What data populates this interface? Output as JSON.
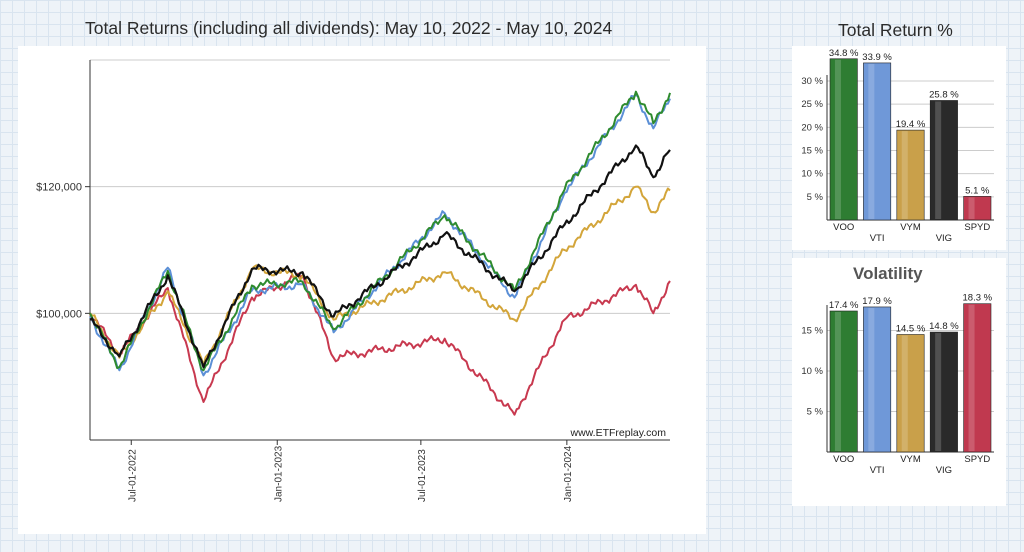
{
  "main_title": "Total Returns (including all dividends): May 10, 2022 - May 10, 2024",
  "return_title": "Total Return %",
  "volatility_title": "Volatility",
  "watermark": "www.ETFreplay.com",
  "chart_data": [
    {
      "type": "line",
      "title": "Total Returns (including all dividends): May 10, 2022 - May 10, 2024",
      "x_ticks": [
        "Jul-01-2022",
        "Jan-01-2023",
        "Jul-01-2023",
        "Jan-01-2024"
      ],
      "x_tick_dates": [
        "2022-07-01",
        "2023-01-01",
        "2023-07-01",
        "2024-01-01"
      ],
      "x_range": [
        "2022-05-10",
        "2024-05-10"
      ],
      "y_ticks": [
        "$100,000",
        "$120,000"
      ],
      "y_tick_values": [
        100000,
        120000
      ],
      "ylim": [
        80000,
        140000
      ],
      "grid": "horizontal",
      "series": [
        {
          "key": "VOO",
          "color": "#2e8b2e",
          "x": [
            "2022-05-10",
            "2022-06-16",
            "2022-08-16",
            "2022-09-30",
            "2022-11-30",
            "2023-02-02",
            "2023-03-13",
            "2023-07-31",
            "2023-10-27",
            "2023-12-29",
            "2024-03-28",
            "2024-04-19",
            "2024-05-10"
          ],
          "y": [
            100000,
            91500,
            106700,
            91000,
            104400,
            105000,
            97500,
            115500,
            103500,
            119500,
            135000,
            130000,
            134800
          ]
        },
        {
          "key": "VTI",
          "color": "#5b8fd6",
          "x": [
            "2022-05-10",
            "2022-06-16",
            "2022-08-16",
            "2022-09-30",
            "2022-11-30",
            "2023-02-02",
            "2023-03-13",
            "2023-07-31",
            "2023-10-27",
            "2023-12-29",
            "2024-03-28",
            "2024-04-19",
            "2024-05-10"
          ],
          "y": [
            99500,
            91000,
            107200,
            90200,
            103600,
            104600,
            97000,
            115800,
            102500,
            119000,
            134500,
            129200,
            133900
          ]
        },
        {
          "key": "VYM",
          "color": "#d3a53a",
          "x": [
            "2022-05-10",
            "2022-06-16",
            "2022-08-16",
            "2022-09-30",
            "2022-11-30",
            "2023-02-02",
            "2023-03-13",
            "2023-07-31",
            "2023-10-27",
            "2023-12-29",
            "2024-03-28",
            "2024-04-19",
            "2024-05-10"
          ],
          "y": [
            100000,
            93000,
            103500,
            91800,
            107000,
            106000,
            99000,
            106500,
            99000,
            110000,
            120000,
            116000,
            119400
          ]
        },
        {
          "key": "VIG",
          "color": "#111111",
          "x": [
            "2022-05-10",
            "2022-06-16",
            "2022-08-16",
            "2022-09-30",
            "2022-11-30",
            "2023-02-02",
            "2023-03-13",
            "2023-07-31",
            "2023-10-27",
            "2023-12-29",
            "2024-03-28",
            "2024-04-19",
            "2024-05-10"
          ],
          "y": [
            99000,
            93200,
            106000,
            91500,
            107000,
            106500,
            99500,
            112500,
            103500,
            114000,
            126500,
            121500,
            125800
          ]
        },
        {
          "key": "SPYD",
          "color": "#c8394f",
          "x": [
            "2022-05-10",
            "2022-06-16",
            "2022-08-16",
            "2022-09-30",
            "2022-11-30",
            "2023-02-02",
            "2023-03-13",
            "2023-07-31",
            "2023-10-27",
            "2023-12-29",
            "2024-03-28",
            "2024-04-19",
            "2024-05-10"
          ],
          "y": [
            100000,
            93500,
            104000,
            86000,
            102500,
            106000,
            93000,
            96000,
            84000,
            99000,
            104500,
            100000,
            105100
          ]
        }
      ]
    },
    {
      "type": "bar",
      "title": "Total Return %",
      "categories": [
        "VOO",
        "VTI",
        "VYM",
        "VIG",
        "SPYD"
      ],
      "values": [
        34.8,
        33.9,
        19.4,
        25.8,
        5.1
      ],
      "value_labels": [
        "34.8 %",
        "33.9 %",
        "19.4 %",
        "25.8 %",
        "5.1 %"
      ],
      "colors": [
        "#2e7d32",
        "#6f98d8",
        "#c9a04a",
        "#2a2a2a",
        "#c0394f"
      ],
      "y_ticks": [
        "5 %",
        "10 %",
        "15 %",
        "20 %",
        "25 %",
        "30 %"
      ],
      "y_tick_values": [
        5,
        10,
        15,
        20,
        25,
        30
      ],
      "ylim": [
        0,
        30
      ],
      "grid": "horizontal"
    },
    {
      "type": "bar",
      "title": "Volatility",
      "categories": [
        "VOO",
        "VTI",
        "VYM",
        "VIG",
        "SPYD"
      ],
      "values": [
        17.4,
        17.9,
        14.5,
        14.8,
        18.3
      ],
      "value_labels": [
        "17.4 %",
        "17.9 %",
        "14.5 %",
        "14.8 %",
        "18.3 %"
      ],
      "colors": [
        "#2e7d32",
        "#6f98d8",
        "#c9a04a",
        "#2a2a2a",
        "#c0394f"
      ],
      "y_ticks": [
        "5 %",
        "10 %",
        "15 %"
      ],
      "y_tick_values": [
        5,
        10,
        15
      ],
      "ylim": [
        0,
        17.4
      ],
      "grid": "horizontal"
    }
  ]
}
